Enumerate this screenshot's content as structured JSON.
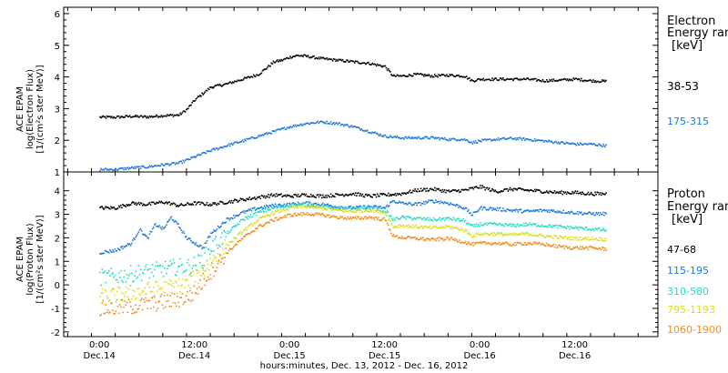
{
  "chart_data": [
    {
      "type": "scatter",
      "panel": "electron",
      "ylabel_lines": [
        "ACE EPAM",
        "log(Electron Flux)",
        "[1/(cm²s ster MeV)]"
      ],
      "ylim": [
        1,
        6.2
      ],
      "yticks": [
        "1",
        "2",
        "3",
        "4",
        "5",
        "6"
      ],
      "legend_title": [
        "Electron",
        "Energy ran",
        "[keV]"
      ],
      "series": [
        {
          "name": "38-53",
          "color": "#000000",
          "points": [
            [
              0,
              2.75
            ],
            [
              2,
              2.75
            ],
            [
              4,
              2.78
            ],
            [
              6,
              2.76
            ],
            [
              8,
              2.8
            ],
            [
              10,
              2.82
            ],
            [
              11,
              3.0
            ],
            [
              12,
              3.3
            ],
            [
              13,
              3.5
            ],
            [
              14,
              3.7
            ],
            [
              16,
              3.8
            ],
            [
              18,
              3.95
            ],
            [
              20,
              4.1
            ],
            [
              21,
              4.3
            ],
            [
              22,
              4.5
            ],
            [
              23,
              4.55
            ],
            [
              24,
              4.65
            ],
            [
              25,
              4.7
            ],
            [
              26,
              4.68
            ],
            [
              28,
              4.6
            ],
            [
              30,
              4.55
            ],
            [
              32,
              4.5
            ],
            [
              34,
              4.45
            ],
            [
              36,
              4.35
            ],
            [
              37,
              4.05
            ],
            [
              38,
              4.05
            ],
            [
              40,
              4.1
            ],
            [
              42,
              4.05
            ],
            [
              44,
              4.08
            ],
            [
              46,
              4.05
            ],
            [
              47,
              3.9
            ],
            [
              48,
              3.95
            ],
            [
              50,
              3.95
            ],
            [
              52,
              3.95
            ],
            [
              54,
              3.95
            ],
            [
              56,
              3.9
            ],
            [
              58,
              3.92
            ],
            [
              60,
              3.95
            ],
            [
              62,
              3.9
            ],
            [
              64,
              3.88
            ]
          ]
        },
        {
          "name": "175-315",
          "color": "#1e78dc",
          "points": [
            [
              0,
              1.1
            ],
            [
              2,
              1.1
            ],
            [
              4,
              1.15
            ],
            [
              6,
              1.18
            ],
            [
              8,
              1.25
            ],
            [
              10,
              1.3
            ],
            [
              12,
              1.5
            ],
            [
              14,
              1.7
            ],
            [
              16,
              1.85
            ],
            [
              18,
              2.0
            ],
            [
              20,
              2.15
            ],
            [
              22,
              2.3
            ],
            [
              24,
              2.45
            ],
            [
              26,
              2.55
            ],
            [
              28,
              2.6
            ],
            [
              30,
              2.55
            ],
            [
              32,
              2.45
            ],
            [
              34,
              2.3
            ],
            [
              36,
              2.15
            ],
            [
              38,
              2.1
            ],
            [
              40,
              2.1
            ],
            [
              42,
              2.1
            ],
            [
              44,
              2.05
            ],
            [
              46,
              2.05
            ],
            [
              47,
              1.95
            ],
            [
              48,
              2.0
            ],
            [
              50,
              2.05
            ],
            [
              52,
              2.08
            ],
            [
              54,
              2.05
            ],
            [
              56,
              2.0
            ],
            [
              58,
              1.95
            ],
            [
              60,
              1.9
            ],
            [
              62,
              1.9
            ],
            [
              64,
              1.85
            ]
          ]
        }
      ]
    },
    {
      "type": "scatter",
      "panel": "proton",
      "ylabel_lines": [
        "ACE EPAM",
        "log(Proton Flux)",
        "[1/(cm²s ster MeV)]"
      ],
      "ylim": [
        -2.2,
        4.8
      ],
      "yticks": [
        "-2",
        "-1",
        "0",
        "1",
        "2",
        "3",
        "4"
      ],
      "legend_title": [
        "Proton",
        "Energy ran",
        "[keV]"
      ],
      "series": [
        {
          "name": "47-68",
          "color": "#000000",
          "points": [
            [
              0,
              3.3
            ],
            [
              2,
              3.3
            ],
            [
              4,
              3.5
            ],
            [
              6,
              3.45
            ],
            [
              8,
              3.55
            ],
            [
              10,
              3.4
            ],
            [
              12,
              3.5
            ],
            [
              14,
              3.45
            ],
            [
              16,
              3.55
            ],
            [
              18,
              3.65
            ],
            [
              20,
              3.75
            ],
            [
              22,
              3.85
            ],
            [
              24,
              3.8
            ],
            [
              26,
              3.85
            ],
            [
              28,
              3.8
            ],
            [
              30,
              3.85
            ],
            [
              32,
              3.9
            ],
            [
              34,
              3.8
            ],
            [
              36,
              3.85
            ],
            [
              38,
              3.9
            ],
            [
              40,
              4.05
            ],
            [
              42,
              4.1
            ],
            [
              44,
              4.0
            ],
            [
              46,
              4.05
            ],
            [
              48,
              4.2
            ],
            [
              50,
              4.0
            ],
            [
              52,
              4.1
            ],
            [
              54,
              4.05
            ],
            [
              56,
              4.0
            ],
            [
              58,
              3.95
            ],
            [
              60,
              3.95
            ],
            [
              62,
              3.9
            ],
            [
              64,
              3.9
            ]
          ]
        },
        {
          "name": "115-195",
          "color": "#1e78dc",
          "points": [
            [
              0,
              1.4
            ],
            [
              2,
              1.5
            ],
            [
              4,
              1.8
            ],
            [
              5,
              2.4
            ],
            [
              6,
              2.0
            ],
            [
              7,
              2.6
            ],
            [
              8,
              2.4
            ],
            [
              9,
              2.9
            ],
            [
              10,
              2.5
            ],
            [
              11,
              2.0
            ],
            [
              12,
              1.8
            ],
            [
              13,
              1.6
            ],
            [
              14,
              2.2
            ],
            [
              15,
              2.5
            ],
            [
              16,
              2.8
            ],
            [
              18,
              3.1
            ],
            [
              20,
              3.3
            ],
            [
              22,
              3.4
            ],
            [
              24,
              3.45
            ],
            [
              26,
              3.5
            ],
            [
              28,
              3.45
            ],
            [
              30,
              3.35
            ],
            [
              32,
              3.3
            ],
            [
              34,
              3.35
            ],
            [
              36,
              3.3
            ],
            [
              37,
              3.6
            ],
            [
              38,
              3.5
            ],
            [
              40,
              3.45
            ],
            [
              42,
              3.6
            ],
            [
              44,
              3.5
            ],
            [
              46,
              3.3
            ],
            [
              47,
              3.0
            ],
            [
              48,
              3.3
            ],
            [
              50,
              3.25
            ],
            [
              52,
              3.2
            ],
            [
              54,
              3.15
            ],
            [
              56,
              3.2
            ],
            [
              58,
              3.15
            ],
            [
              60,
              3.1
            ],
            [
              62,
              3.05
            ],
            [
              64,
              3.05
            ]
          ]
        },
        {
          "name": "310-580",
          "color": "#20dcc8",
          "points": [
            [
              0,
              0.35
            ],
            [
              2,
              0.4
            ],
            [
              4,
              0.5
            ],
            [
              6,
              0.6
            ],
            [
              8,
              0.7
            ],
            [
              10,
              0.8
            ],
            [
              11,
              0.8
            ],
            [
              12,
              0.9
            ],
            [
              13,
              1.1
            ],
            [
              14,
              1.6
            ],
            [
              16,
              2.2
            ],
            [
              18,
              2.8
            ],
            [
              20,
              3.1
            ],
            [
              22,
              3.3
            ],
            [
              24,
              3.4
            ],
            [
              26,
              3.45
            ],
            [
              28,
              3.35
            ],
            [
              30,
              3.3
            ],
            [
              32,
              3.25
            ],
            [
              34,
              3.3
            ],
            [
              36,
              3.2
            ],
            [
              37,
              2.8
            ],
            [
              38,
              2.9
            ],
            [
              40,
              2.85
            ],
            [
              42,
              2.8
            ],
            [
              44,
              2.85
            ],
            [
              46,
              2.75
            ],
            [
              47,
              2.5
            ],
            [
              48,
              2.6
            ],
            [
              50,
              2.6
            ],
            [
              52,
              2.55
            ],
            [
              54,
              2.6
            ],
            [
              56,
              2.55
            ],
            [
              58,
              2.5
            ],
            [
              60,
              2.45
            ],
            [
              62,
              2.4
            ],
            [
              64,
              2.35
            ]
          ]
        },
        {
          "name": "795-1193",
          "color": "#dcdc1e",
          "points": [
            [
              0,
              -0.5
            ],
            [
              2,
              -0.4
            ],
            [
              4,
              -0.3
            ],
            [
              6,
              -0.2
            ],
            [
              8,
              -0.1
            ],
            [
              10,
              0.0
            ],
            [
              11,
              0.1
            ],
            [
              12,
              0.3
            ],
            [
              13,
              0.6
            ],
            [
              14,
              1.0
            ],
            [
              16,
              1.7
            ],
            [
              18,
              2.3
            ],
            [
              20,
              2.8
            ],
            [
              22,
              3.1
            ],
            [
              24,
              3.3
            ],
            [
              26,
              3.35
            ],
            [
              28,
              3.3
            ],
            [
              30,
              3.2
            ],
            [
              32,
              3.15
            ],
            [
              34,
              3.2
            ],
            [
              36,
              3.1
            ],
            [
              37,
              2.5
            ],
            [
              38,
              2.55
            ],
            [
              40,
              2.5
            ],
            [
              42,
              2.45
            ],
            [
              44,
              2.5
            ],
            [
              46,
              2.35
            ],
            [
              47,
              2.1
            ],
            [
              48,
              2.2
            ],
            [
              50,
              2.2
            ],
            [
              52,
              2.15
            ],
            [
              54,
              2.2
            ],
            [
              56,
              2.1
            ],
            [
              58,
              2.05
            ],
            [
              60,
              2.0
            ],
            [
              62,
              2.0
            ],
            [
              64,
              1.95
            ]
          ]
        },
        {
          "name": "1060-1900",
          "color": "#f08c1e",
          "points": [
            [
              0,
              -1.0
            ],
            [
              2,
              -0.95
            ],
            [
              4,
              -0.9
            ],
            [
              6,
              -0.8
            ],
            [
              8,
              -0.7
            ],
            [
              10,
              -0.6
            ],
            [
              11,
              -0.5
            ],
            [
              12,
              -0.3
            ],
            [
              13,
              0.2
            ],
            [
              14,
              0.6
            ],
            [
              16,
              1.4
            ],
            [
              18,
              2.0
            ],
            [
              20,
              2.5
            ],
            [
              22,
              2.8
            ],
            [
              24,
              3.0
            ],
            [
              26,
              3.05
            ],
            [
              28,
              3.0
            ],
            [
              30,
              2.9
            ],
            [
              32,
              2.85
            ],
            [
              34,
              2.9
            ],
            [
              36,
              2.8
            ],
            [
              37,
              2.1
            ],
            [
              38,
              2.05
            ],
            [
              40,
              2.0
            ],
            [
              42,
              1.95
            ],
            [
              44,
              2.0
            ],
            [
              46,
              1.85
            ],
            [
              47,
              1.75
            ],
            [
              48,
              1.8
            ],
            [
              50,
              1.8
            ],
            [
              52,
              1.75
            ],
            [
              54,
              1.8
            ],
            [
              56,
              1.75
            ],
            [
              58,
              1.65
            ],
            [
              60,
              1.6
            ],
            [
              62,
              1.6
            ],
            [
              64,
              1.55
            ]
          ]
        }
      ]
    }
  ],
  "x_axis": {
    "xlim_hours": [
      -4.5,
      70.5
    ],
    "major_ticks": [
      {
        "hour": 0,
        "time": "0:00",
        "date": "Dec.14"
      },
      {
        "hour": 12,
        "time": "12:00",
        "date": "Dec.14"
      },
      {
        "hour": 24,
        "time": "0:00",
        "date": "Dec.15"
      },
      {
        "hour": 36,
        "time": "12:00",
        "date": "Dec.15"
      },
      {
        "hour": 48,
        "time": "0:00",
        "date": "Dec.16"
      },
      {
        "hour": 60,
        "time": "12:00",
        "date": "Dec.16"
      }
    ],
    "xlabel": "hours:minutes, Dec. 13, 2012 - Dec. 16, 2012"
  }
}
